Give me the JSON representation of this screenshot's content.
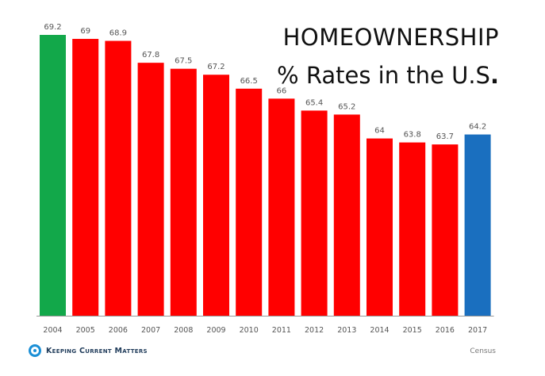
{
  "title_line1": "HOMEOWNERSHIP",
  "title_line2_text": "% Rates in the U.S",
  "title_line2_dot": ".",
  "logo_text": "Keeping Current Matters",
  "source": "Census",
  "colors": {
    "first": "#12a84a",
    "middle": "#ff0000",
    "last": "#1a6fbf",
    "label": "#555555",
    "axis": "#999999"
  },
  "chart_data": {
    "type": "bar",
    "categories": [
      "2004",
      "2005",
      "2006",
      "2007",
      "2008",
      "2009",
      "2010",
      "2011",
      "2012",
      "2013",
      "2014",
      "2015",
      "2016",
      "2017"
    ],
    "values": [
      69.2,
      69,
      68.9,
      67.8,
      67.5,
      67.2,
      66.5,
      66,
      65.4,
      65.2,
      64,
      63.8,
      63.7,
      64.2
    ],
    "value_labels": [
      "69.2",
      "69",
      "68.9",
      "67.8",
      "67.5",
      "67.2",
      "66.5",
      "66",
      "65.4",
      "65.2",
      "64",
      "63.8",
      "63.7",
      "64.2"
    ],
    "bar_colors": [
      "#12a84a",
      "#ff0000",
      "#ff0000",
      "#ff0000",
      "#ff0000",
      "#ff0000",
      "#ff0000",
      "#ff0000",
      "#ff0000",
      "#ff0000",
      "#ff0000",
      "#ff0000",
      "#ff0000",
      "#1a6fbf"
    ],
    "ylim": [
      55.1,
      69.2
    ],
    "grid": false
  }
}
